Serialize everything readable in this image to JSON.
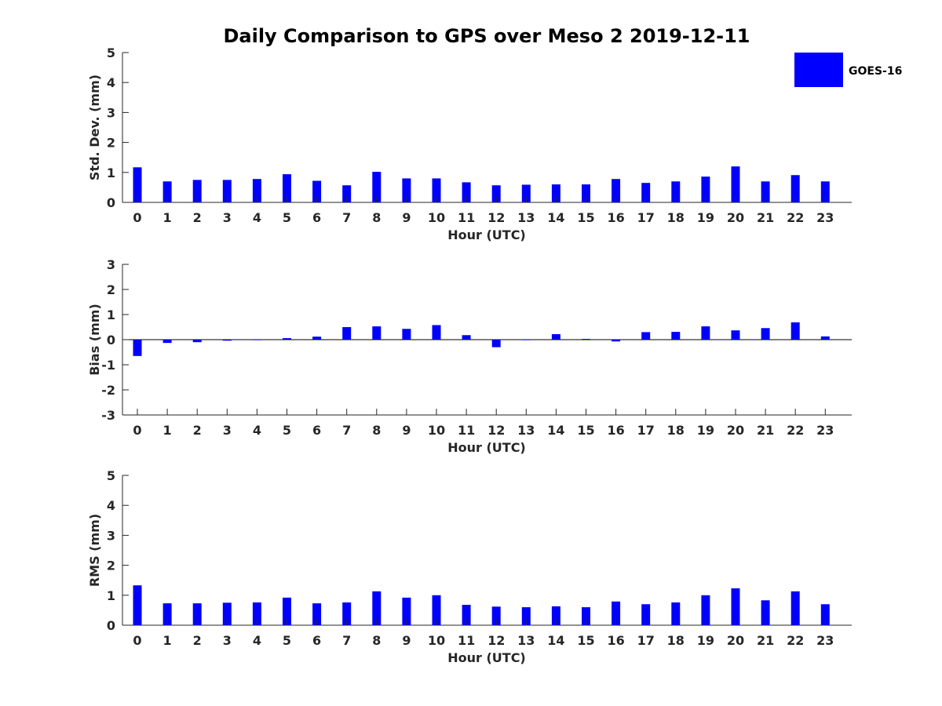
{
  "chart_data": {
    "title": "Daily Comparison to GPS over Meso 2 2019-12-11",
    "legend": {
      "label": "GOES-16",
      "color": "#0000ff",
      "position": "top-right"
    },
    "bar_color": "#0000ff",
    "panels": [
      {
        "type": "bar",
        "name": "std-dev",
        "xlabel": "Hour (UTC)",
        "ylabel": "Std. Dev. (mm)",
        "ylim": [
          0,
          5
        ],
        "yticks": [
          "0",
          "1",
          "2",
          "3",
          "4",
          "5"
        ],
        "categories": [
          "0",
          "1",
          "2",
          "3",
          "4",
          "5",
          "6",
          "7",
          "8",
          "9",
          "10",
          "11",
          "12",
          "13",
          "14",
          "15",
          "16",
          "17",
          "18",
          "19",
          "20",
          "21",
          "22",
          "23"
        ],
        "values": [
          1.17,
          0.7,
          0.75,
          0.75,
          0.78,
          0.94,
          0.72,
          0.57,
          1.02,
          0.8,
          0.8,
          0.67,
          0.57,
          0.59,
          0.6,
          0.6,
          0.78,
          0.65,
          0.7,
          0.86,
          1.2,
          0.7,
          0.91,
          0.7
        ]
      },
      {
        "type": "bar",
        "name": "bias",
        "xlabel": "Hour (UTC)",
        "ylabel": "Bias (mm)",
        "ylim": [
          -3,
          3
        ],
        "yticks": [
          "-3",
          "-2",
          "-1",
          "0",
          "1",
          "2",
          "3"
        ],
        "categories": [
          "0",
          "1",
          "2",
          "3",
          "4",
          "5",
          "6",
          "7",
          "8",
          "9",
          "10",
          "11",
          "12",
          "13",
          "14",
          "15",
          "16",
          "17",
          "18",
          "19",
          "20",
          "21",
          "22",
          "23"
        ],
        "values": [
          -0.65,
          -0.13,
          -0.1,
          -0.04,
          -0.02,
          0.06,
          0.12,
          0.5,
          0.53,
          0.43,
          0.58,
          0.18,
          -0.3,
          -0.02,
          0.22,
          0.03,
          -0.07,
          0.3,
          0.31,
          0.53,
          0.37,
          0.46,
          0.69,
          0.13
        ]
      },
      {
        "type": "bar",
        "name": "rms",
        "xlabel": "Hour (UTC)",
        "ylabel": "RMS (mm)",
        "ylim": [
          0,
          5
        ],
        "yticks": [
          "0",
          "1",
          "2",
          "3",
          "4",
          "5"
        ],
        "categories": [
          "0",
          "1",
          "2",
          "3",
          "4",
          "5",
          "6",
          "7",
          "8",
          "9",
          "10",
          "11",
          "12",
          "13",
          "14",
          "15",
          "16",
          "17",
          "18",
          "19",
          "20",
          "21",
          "22",
          "23"
        ],
        "values": [
          1.33,
          0.73,
          0.73,
          0.75,
          0.76,
          0.92,
          0.73,
          0.76,
          1.13,
          0.92,
          1.0,
          0.68,
          0.62,
          0.6,
          0.63,
          0.6,
          0.79,
          0.7,
          0.76,
          1.0,
          1.23,
          0.83,
          1.13,
          0.7
        ]
      }
    ]
  }
}
